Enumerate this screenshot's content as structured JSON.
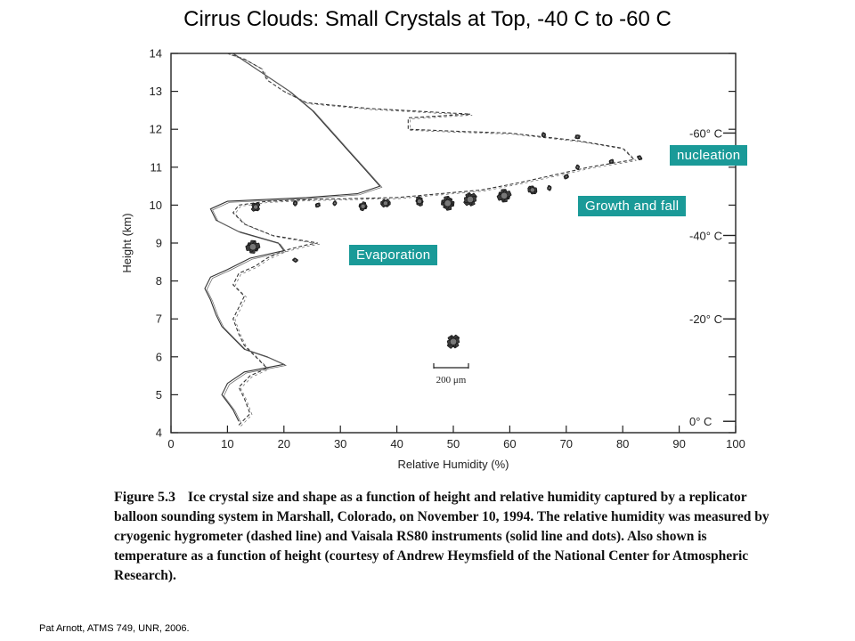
{
  "slide": {
    "title": "Cirrus Clouds:  Small Crystals at Top, -40 C to -60 C",
    "footer": "Pat Arnott, ATMS 749, UNR, 2006."
  },
  "annotations": {
    "nucleation": "nucleation",
    "growth": "Growth and fall",
    "evaporation": "Evaporation",
    "scale_bar": "200 μm"
  },
  "caption": {
    "label": "Figure 5.3",
    "text": "Ice crystal size and shape as a function of height and relative humidity captured by a replicator balloon sounding system in Marshall, Colorado, on November 10, 1994. The relative humidity was measured by cryogenic hygrometer (dashed line) and Vaisala RS80 instruments (solid line and dots). Also shown is temperature as a function of height (courtesy of Andrew Heymsfield of the National Center for Atmospheric Research)."
  },
  "colors": {
    "tag_bg": "#1a9a98",
    "tag_text": "#ffffff",
    "ink": "#222222"
  },
  "chart_data": {
    "type": "line",
    "title": "",
    "xlabel": "Relative Humidity (%)",
    "ylabel": "Height (km)",
    "xlim": [
      0,
      100
    ],
    "ylim": [
      4,
      14
    ],
    "xticks": [
      0,
      10,
      20,
      30,
      40,
      50,
      60,
      70,
      80,
      90,
      100
    ],
    "yticks": [
      4,
      5,
      6,
      7,
      8,
      9,
      10,
      11,
      12,
      13,
      14
    ],
    "temperature_ticks": [
      {
        "label": "0° C",
        "height": 4.3
      },
      {
        "label": "-20° C",
        "height": 7.0
      },
      {
        "label": "-40° C",
        "height": 9.2
      },
      {
        "label": "-60° C",
        "height": 11.9
      }
    ],
    "series": [
      {
        "style": "dashed",
        "points": [
          [
            12,
            4.2
          ],
          [
            14,
            4.5
          ],
          [
            13,
            4.9
          ],
          [
            12,
            5.2
          ],
          [
            14,
            5.5
          ],
          [
            17,
            5.7
          ],
          [
            15,
            6.0
          ],
          [
            13,
            6.3
          ],
          [
            12,
            6.6
          ],
          [
            11,
            7.0
          ],
          [
            12,
            7.3
          ],
          [
            13,
            7.6
          ],
          [
            11,
            7.9
          ],
          [
            12,
            8.2
          ],
          [
            15,
            8.4
          ],
          [
            17,
            8.6
          ],
          [
            20,
            8.8
          ],
          [
            24,
            8.95
          ],
          [
            26,
            9.0
          ],
          [
            18,
            9.2
          ],
          [
            13,
            9.5
          ],
          [
            11,
            9.8
          ],
          [
            12,
            10.0
          ],
          [
            17,
            10.1
          ],
          [
            25,
            10.15
          ],
          [
            40,
            10.2
          ],
          [
            55,
            10.4
          ],
          [
            62,
            10.6
          ],
          [
            68,
            10.8
          ],
          [
            74,
            11.0
          ],
          [
            82,
            11.2
          ],
          [
            80,
            11.5
          ],
          [
            72,
            11.7
          ],
          [
            60,
            11.9
          ],
          [
            50,
            11.95
          ],
          [
            42,
            12.0
          ],
          [
            42,
            12.3
          ],
          [
            53,
            12.4
          ],
          [
            35,
            12.55
          ],
          [
            24,
            12.7
          ],
          [
            20,
            13.0
          ],
          [
            17,
            13.3
          ],
          [
            16,
            13.6
          ],
          [
            13,
            13.85
          ],
          [
            10,
            14.0
          ]
        ]
      },
      {
        "style": "solid",
        "points": [
          [
            12,
            4.3
          ],
          [
            11,
            4.6
          ],
          [
            9,
            5.0
          ],
          [
            10,
            5.3
          ],
          [
            13,
            5.6
          ],
          [
            20,
            5.8
          ],
          [
            17,
            6.0
          ],
          [
            13,
            6.2
          ],
          [
            11,
            6.5
          ],
          [
            9,
            6.8
          ],
          [
            8,
            7.1
          ],
          [
            7,
            7.5
          ],
          [
            6,
            7.8
          ],
          [
            7,
            8.1
          ],
          [
            10,
            8.3
          ],
          [
            14,
            8.6
          ],
          [
            20,
            8.8
          ],
          [
            19,
            9.0
          ],
          [
            12,
            9.3
          ],
          [
            8,
            9.6
          ],
          [
            7,
            9.9
          ],
          [
            10,
            10.1
          ],
          [
            24,
            10.2
          ],
          [
            33,
            10.3
          ],
          [
            37,
            10.5
          ],
          [
            34,
            11.0
          ],
          [
            31,
            11.5
          ],
          [
            28,
            12.0
          ],
          [
            25,
            12.5
          ],
          [
            21,
            13.0
          ],
          [
            17,
            13.4
          ],
          [
            14,
            13.7
          ],
          [
            11,
            14.0
          ]
        ]
      }
    ],
    "crystal_sizes": [
      {
        "rh": 15,
        "height": 9.95,
        "size": "medium"
      },
      {
        "rh": 14.5,
        "height": 8.9,
        "size": "large"
      },
      {
        "rh": 22,
        "height": 8.55,
        "size": "small"
      },
      {
        "rh": 22,
        "height": 10.05,
        "size": "small"
      },
      {
        "rh": 26,
        "height": 10.0,
        "size": "small"
      },
      {
        "rh": 29,
        "height": 10.05,
        "size": "small"
      },
      {
        "rh": 34,
        "height": 9.97,
        "size": "medium"
      },
      {
        "rh": 38,
        "height": 10.05,
        "size": "medium"
      },
      {
        "rh": 44,
        "height": 10.1,
        "size": "medium"
      },
      {
        "rh": 49,
        "height": 10.05,
        "size": "large"
      },
      {
        "rh": 53,
        "height": 10.15,
        "size": "large"
      },
      {
        "rh": 59,
        "height": 10.25,
        "size": "large"
      },
      {
        "rh": 64,
        "height": 10.4,
        "size": "medium"
      },
      {
        "rh": 67,
        "height": 10.45,
        "size": "small"
      },
      {
        "rh": 70,
        "height": 10.75,
        "size": "small"
      },
      {
        "rh": 72,
        "height": 11.0,
        "size": "small"
      },
      {
        "rh": 78,
        "height": 11.15,
        "size": "small"
      },
      {
        "rh": 83,
        "height": 11.25,
        "size": "small"
      },
      {
        "rh": 66,
        "height": 11.85,
        "size": "small"
      },
      {
        "rh": 72,
        "height": 11.8,
        "size": "small"
      },
      {
        "rh": 50,
        "height": 6.4,
        "size": "large"
      }
    ],
    "grid": false,
    "legend": "none"
  }
}
